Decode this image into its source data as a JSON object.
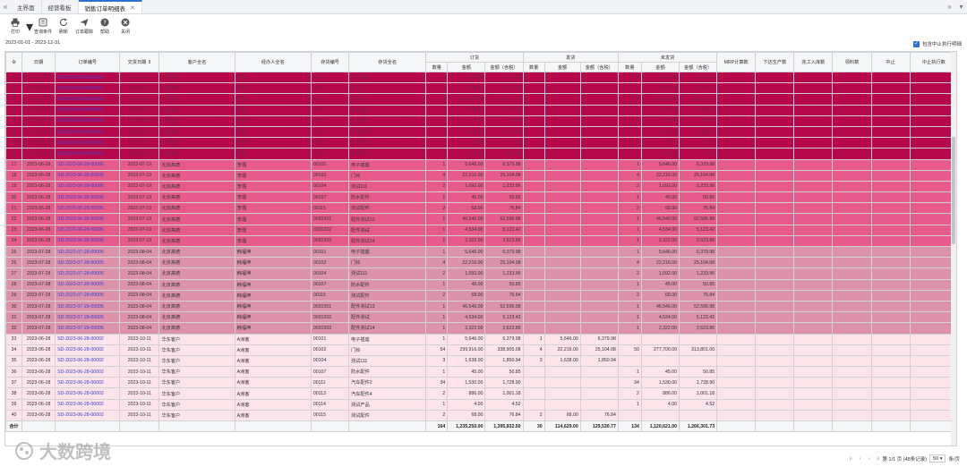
{
  "tabs": {
    "items": [
      {
        "label": "主界面",
        "active": false,
        "closable": false
      },
      {
        "label": "经营看板",
        "active": false,
        "closable": false
      },
      {
        "label": "销售订单明细表",
        "active": true,
        "closable": true
      }
    ]
  },
  "toolbar": {
    "buttons": [
      {
        "name": "print",
        "label": "打印",
        "icon": "printer-icon"
      },
      {
        "name": "filter",
        "label": "查询条件",
        "icon": "filter-icon"
      },
      {
        "name": "refresh",
        "label": "刷新",
        "icon": "refresh-icon"
      },
      {
        "name": "trace",
        "label": "订单跟踪",
        "icon": "send-icon"
      },
      {
        "name": "help",
        "label": "帮助",
        "icon": "help-icon"
      },
      {
        "name": "close",
        "label": "关闭",
        "icon": "close-icon"
      }
    ]
  },
  "date_range": "2023-01-01 - 2023-12-31",
  "show_suspended_label": "包含中止执行明细",
  "colors": {
    "rowgroup1": "#b8084c",
    "rowgroup2": "#e75b8c",
    "rowgroup3": "#dd92ab",
    "rowgroup4": "#fde3ea",
    "accent": "#2f6fd6"
  },
  "table": {
    "header_top": {
      "settings_icon": "gear-icon",
      "date": "日期",
      "order_no": "订单编号",
      "delivery_date": "交货日期",
      "customer": "客户全名",
      "handler": "经办人全名",
      "stock_no": "存货编号",
      "stock_name": "存货全名",
      "group_order": "订货",
      "group_delivered": "发货",
      "group_undelivered": "未发货",
      "mrp": "MRP计算数",
      "prod_plan": "下达生产数",
      "storage": "完工入库数",
      "pick": "领料数",
      "stop": "中止",
      "stop_exec": "中止执行数"
    },
    "header_sub": {
      "qty": "数量",
      "amount": "金额",
      "amount_tax": "金额（含税）"
    },
    "rows": [
      {
        "no": "9",
        "date": "2023-06-28",
        "order": "SD-2023-06-28-00001",
        "due": "2023-06-30",
        "cust": "华东客户",
        "handler": "王明",
        "code": "00101",
        "name": "电子插座",
        "oq": "1",
        "oa": "2,236.00",
        "ot": "2,546.48",
        "dq": "",
        "da": "",
        "dt": "",
        "uq": "1",
        "ua": "2,236.00",
        "ut": "2,546.48",
        "g": 1
      },
      {
        "no": "10",
        "date": "2023-06-28",
        "order": "SD-2023-06-28-00001",
        "due": "2023-06-30",
        "cust": "华东客户",
        "handler": "王明",
        "code": "00102",
        "name": "门铃",
        "oq": "1",
        "oa": "5,200.00",
        "ot": "5,876.00",
        "dq": "",
        "da": "",
        "dt": "",
        "uq": "1",
        "ua": "5,200.00",
        "ut": "5,876.00",
        "g": 1
      },
      {
        "no": "11",
        "date": "2023-06-28",
        "order": "SD-2023-06-28-00001",
        "due": "2023-06-30",
        "cust": "华东客户",
        "handler": "王明",
        "code": "00104",
        "name": "测试111",
        "oq": "3",
        "oa": "646,440.00",
        "ot": "730,477.20",
        "dq": "",
        "da": "",
        "dt": "",
        "uq": "3",
        "ua": "646,440.00",
        "ut": "730,477.20",
        "g": 1
      },
      {
        "no": "12",
        "date": "2023-06-28",
        "order": "SD-2023-06-28-00001",
        "due": "2023-06-30",
        "cust": "华东客户",
        "handler": "王明",
        "code": "00107",
        "name": "防水配件",
        "oq": "1",
        "oa": "2,300.00",
        "ot": "2,599.00",
        "dq": "",
        "da": "",
        "dt": "",
        "uq": "1",
        "ua": "2,300.00",
        "ut": "2,599.00",
        "g": 1
      },
      {
        "no": "13",
        "date": "2023-06-28",
        "order": "SD-2023-06-28-00001",
        "due": "2023-06-30",
        "cust": "华东客户",
        "handler": "王明",
        "code": "00110",
        "name": "汽车配件",
        "oq": "1",
        "oa": "50.00",
        "ot": "56.50",
        "dq": "",
        "da": "",
        "dt": "",
        "uq": "1",
        "ua": "50.00",
        "ut": "56.50",
        "g": 1
      },
      {
        "no": "14",
        "date": "2023-06-28",
        "order": "SD-2023-06-28-00001",
        "due": "2023-06-30",
        "cust": "华东客户",
        "handler": "王明",
        "code": "00111",
        "name": "汽车配件2",
        "oq": "1",
        "oa": "1,280.00",
        "ot": "1,446.40",
        "dq": "",
        "da": "",
        "dt": "",
        "uq": "1",
        "ua": "1,280.00",
        "ut": "1,446.40",
        "g": 1
      },
      {
        "no": "15",
        "date": "2023-06-28",
        "order": "SD-2023-06-28-00001",
        "due": "2023-06-30",
        "cust": "华东客户",
        "handler": "王明",
        "code": "00114",
        "name": "测试产品",
        "oq": "1",
        "oa": "3.00",
        "ot": "3.39",
        "dq": "",
        "da": "",
        "dt": "",
        "uq": "1",
        "ua": "3.00",
        "ut": "3.39",
        "g": 1
      },
      {
        "no": "16",
        "date": "2023-06-28",
        "order": "SD-2023-06-28-00001",
        "due": "2023-06-30",
        "cust": "华东客户",
        "handler": "王明",
        "code": "00115",
        "name": "测试配件",
        "oq": "1",
        "oa": "150.00",
        "ot": "169.50",
        "dq": "",
        "da": "",
        "dt": "",
        "uq": "1",
        "ua": "150.00",
        "ut": "169.50",
        "g": 1
      },
      {
        "no": "17",
        "date": "2023-06-28",
        "order": "SD-2023-06-28-00006",
        "due": "2023-07-19",
        "cust": "北京高德",
        "handler": "李强",
        "code": "00101",
        "name": "电子插座",
        "oq": "1",
        "oa": "5,646.00",
        "ot": "6,379.98",
        "dq": "",
        "da": "",
        "dt": "",
        "uq": "1",
        "ua": "5,646.00",
        "ut": "6,379.98",
        "g": 2
      },
      {
        "no": "18",
        "date": "2023-06-28",
        "order": "SD-2023-06-28-00006",
        "due": "2023-07-19",
        "cust": "北京高德",
        "handler": "李强",
        "code": "00102",
        "name": "门铃",
        "oq": "4",
        "oa": "22,216.00",
        "ot": "25,104.08",
        "dq": "",
        "da": "",
        "dt": "",
        "uq": "4",
        "ua": "22,216.00",
        "ut": "25,104.08",
        "g": 2
      },
      {
        "no": "19",
        "date": "2023-06-28",
        "order": "SD-2023-06-28-00006",
        "due": "2023-07-19",
        "cust": "北京高德",
        "handler": "李强",
        "code": "00104",
        "name": "测试111",
        "oq": "2",
        "oa": "1,092.00",
        "ot": "1,233.96",
        "dq": "",
        "da": "",
        "dt": "",
        "uq": "2",
        "ua": "1,092.00",
        "ut": "1,233.96",
        "g": 2
      },
      {
        "no": "20",
        "date": "2023-06-28",
        "order": "SD-2023-06-28-00006",
        "due": "2023-07-19",
        "cust": "北京高德",
        "handler": "李强",
        "code": "00107",
        "name": "防水配件",
        "oq": "1",
        "oa": "45.00",
        "ot": "50.85",
        "dq": "",
        "da": "",
        "dt": "",
        "uq": "1",
        "ua": "45.00",
        "ut": "50.85",
        "g": 2
      },
      {
        "no": "21",
        "date": "2023-06-28",
        "order": "SD-2023-06-28-00006",
        "due": "2023-07-19",
        "cust": "北京高德",
        "handler": "李强",
        "code": "00115",
        "name": "测试配件",
        "oq": "2",
        "oa": "68.00",
        "ot": "76.84",
        "dq": "",
        "da": "",
        "dt": "",
        "uq": "2",
        "ua": "68.00",
        "ut": "76.84",
        "g": 2
      },
      {
        "no": "22",
        "date": "2023-06-28",
        "order": "SD-2023-06-28-00006",
        "due": "2023-07-19",
        "cust": "北京高德",
        "handler": "李强",
        "code": "0020201",
        "name": "配件测试13",
        "oq": "1",
        "oa": "46,546.00",
        "ot": "52,596.98",
        "dq": "",
        "da": "",
        "dt": "",
        "uq": "1",
        "ua": "46,546.00",
        "ut": "52,596.98",
        "g": 2
      },
      {
        "no": "23",
        "date": "2023-06-28",
        "order": "SD-2023-06-28-00006",
        "due": "2023-07-19",
        "cust": "北京高德",
        "handler": "李强",
        "code": "0020202",
        "name": "配件测试",
        "oq": "1",
        "oa": "4,534.00",
        "ot": "5,123.42",
        "dq": "",
        "da": "",
        "dt": "",
        "uq": "1",
        "ua": "4,534.00",
        "ut": "5,123.42",
        "g": 2
      },
      {
        "no": "24",
        "date": "2023-06-28",
        "order": "SD-2023-06-28-00006",
        "due": "2023-07-19",
        "cust": "北京高德",
        "handler": "李强",
        "code": "0020203",
        "name": "配件测试14",
        "oq": "1",
        "oa": "2,322.00",
        "ot": "2,623.86",
        "dq": "",
        "da": "",
        "dt": "",
        "uq": "1",
        "ua": "2,322.00",
        "ut": "2,623.86",
        "g": 2
      },
      {
        "no": "25",
        "date": "2023-07-28",
        "order": "SD-2023-07-28-00005",
        "due": "2023-08-04",
        "cust": "北京高德",
        "handler": "韩福坤",
        "code": "00101",
        "name": "电子插座",
        "oq": "1",
        "oa": "5,646.00",
        "ot": "6,379.98",
        "dq": "",
        "da": "",
        "dt": "",
        "uq": "1",
        "ua": "5,646.00",
        "ut": "6,379.98",
        "g": 3
      },
      {
        "no": "26",
        "date": "2023-07-28",
        "order": "SD-2023-07-28-00005",
        "due": "2023-08-04",
        "cust": "北京高德",
        "handler": "韩福坤",
        "code": "00102",
        "name": "门铃",
        "oq": "4",
        "oa": "22,216.00",
        "ot": "25,104.08",
        "dq": "",
        "da": "",
        "dt": "",
        "uq": "4",
        "ua": "22,216.00",
        "ut": "25,104.08",
        "g": 3
      },
      {
        "no": "27",
        "date": "2023-07-28",
        "order": "SD-2023-07-28-00005",
        "due": "2023-08-04",
        "cust": "北京高德",
        "handler": "韩福坤",
        "code": "00104",
        "name": "测试111",
        "oq": "2",
        "oa": "1,092.00",
        "ot": "1,233.96",
        "dq": "",
        "da": "",
        "dt": "",
        "uq": "2",
        "ua": "1,092.00",
        "ut": "1,233.96",
        "g": 3
      },
      {
        "no": "28",
        "date": "2023-07-28",
        "order": "SD-2023-07-28-00005",
        "due": "2023-08-04",
        "cust": "北京高德",
        "handler": "韩福坤",
        "code": "00107",
        "name": "防水配件",
        "oq": "1",
        "oa": "45.00",
        "ot": "50.85",
        "dq": "",
        "da": "",
        "dt": "",
        "uq": "1",
        "ua": "45.00",
        "ut": "50.85",
        "g": 3
      },
      {
        "no": "29",
        "date": "2023-07-28",
        "order": "SD-2023-07-28-00005",
        "due": "2023-08-04",
        "cust": "北京高德",
        "handler": "韩福坤",
        "code": "00115",
        "name": "测试配件",
        "oq": "2",
        "oa": "68.00",
        "ot": "76.84",
        "dq": "",
        "da": "",
        "dt": "",
        "uq": "2",
        "ua": "68.00",
        "ut": "76.84",
        "g": 3
      },
      {
        "no": "30",
        "date": "2023-07-28",
        "order": "SD-2023-07-28-00005",
        "due": "2023-08-04",
        "cust": "北京高德",
        "handler": "韩福坤",
        "code": "0020201",
        "name": "配件测试13",
        "oq": "1",
        "oa": "46,546.00",
        "ot": "52,596.98",
        "dq": "",
        "da": "",
        "dt": "",
        "uq": "1",
        "ua": "46,546.00",
        "ut": "52,596.98",
        "g": 3
      },
      {
        "no": "31",
        "date": "2023-07-28",
        "order": "SD-2023-07-28-00005",
        "due": "2023-08-04",
        "cust": "北京高德",
        "handler": "韩福坤",
        "code": "0020202",
        "name": "配件测试",
        "oq": "1",
        "oa": "4,534.00",
        "ot": "5,123.42",
        "dq": "",
        "da": "",
        "dt": "",
        "uq": "1",
        "ua": "4,534.00",
        "ut": "5,123.42",
        "g": 3
      },
      {
        "no": "32",
        "date": "2023-07-28",
        "order": "SD-2023-07-28-00005",
        "due": "2023-08-04",
        "cust": "北京高德",
        "handler": "韩福坤",
        "code": "0020203",
        "name": "配件测试14",
        "oq": "1",
        "oa": "2,322.00",
        "ot": "2,623.86",
        "dq": "",
        "da": "",
        "dt": "",
        "uq": "1",
        "ua": "2,322.00",
        "ut": "2,623.86",
        "g": 3
      },
      {
        "no": "33",
        "date": "2023-06-28",
        "order": "SD-2023-06-28-00002",
        "due": "2023-10-11",
        "cust": "华东客户",
        "handler": "A洲客",
        "code": "00101",
        "name": "电子插座",
        "oq": "1",
        "oa": "5,646.00",
        "ot": "6,379.98",
        "dq": "1",
        "da": "5,646.00",
        "dt": "6,379.98",
        "uq": "",
        "ua": "",
        "ut": "",
        "g": 4
      },
      {
        "no": "34",
        "date": "2023-06-28",
        "order": "SD-2023-06-28-00002",
        "due": "2023-10-11",
        "cust": "华东客户",
        "handler": "A洲客",
        "code": "00102",
        "name": "门铃",
        "oq": "54",
        "oa": "299,916.00",
        "ot": "338,905.08",
        "dq": "4",
        "da": "22,216.00",
        "dt": "25,104.08",
        "uq": "50",
        "ua": "277,700.00",
        "ut": "313,801.00",
        "g": 4
      },
      {
        "no": "35",
        "date": "2023-06-28",
        "order": "SD-2023-06-28-00002",
        "due": "2023-10-11",
        "cust": "华东客户",
        "handler": "A洲客",
        "code": "00104",
        "name": "测试111",
        "oq": "3",
        "oa": "1,638.00",
        "ot": "1,850.94",
        "dq": "3",
        "da": "1,638.00",
        "dt": "1,850.94",
        "uq": "",
        "ua": "",
        "ut": "",
        "g": 4
      },
      {
        "no": "36",
        "date": "2023-06-28",
        "order": "SD-2023-06-28-00002",
        "due": "2023-10-11",
        "cust": "华东客户",
        "handler": "A洲客",
        "code": "00107",
        "name": "防水配件",
        "oq": "1",
        "oa": "45.00",
        "ot": "50.85",
        "dq": "",
        "da": "",
        "dt": "",
        "uq": "1",
        "ua": "45.00",
        "ut": "50.85",
        "g": 4
      },
      {
        "no": "37",
        "date": "2023-06-28",
        "order": "SD-2023-06-28-00002",
        "due": "2023-10-11",
        "cust": "华东客户",
        "handler": "A洲客",
        "code": "00111",
        "name": "汽车配件2",
        "oq": "34",
        "oa": "1,530.00",
        "ot": "1,728.90",
        "dq": "",
        "da": "",
        "dt": "",
        "uq": "34",
        "ua": "1,530.00",
        "ut": "1,728.90",
        "g": 4
      },
      {
        "no": "38",
        "date": "2023-06-28",
        "order": "SD-2023-06-28-00002",
        "due": "2023-10-11",
        "cust": "华东客户",
        "handler": "A洲客",
        "code": "00113",
        "name": "汽车配件4",
        "oq": "2",
        "oa": "886.00",
        "ot": "1,001.18",
        "dq": "",
        "da": "",
        "dt": "",
        "uq": "2",
        "ua": "886.00",
        "ut": "1,001.18",
        "g": 4
      },
      {
        "no": "39",
        "date": "2023-06-28",
        "order": "SD-2023-06-28-00002",
        "due": "2023-10-11",
        "cust": "华东客户",
        "handler": "A洲客",
        "code": "00114",
        "name": "测试产品",
        "oq": "1",
        "oa": "4.00",
        "ot": "4.52",
        "dq": "",
        "da": "",
        "dt": "",
        "uq": "1",
        "ua": "4.00",
        "ut": "4.52",
        "g": 4
      },
      {
        "no": "40",
        "date": "2023-06-28",
        "order": "SD-2023-06-28-00002",
        "due": "2023-10-11",
        "cust": "华东客户",
        "handler": "A洲客",
        "code": "00115",
        "name": "测试配件",
        "oq": "2",
        "oa": "68.00",
        "ot": "76.84",
        "dq": "2",
        "da": "68.00",
        "dt": "76.84",
        "uq": "",
        "ua": "",
        "ut": "",
        "g": 4
      }
    ],
    "total": {
      "label": "合计",
      "oq": "164",
      "oa": "1,235,250.00",
      "ot": "1,395,832.50",
      "dq": "30",
      "da": "114,629.00",
      "dt": "129,530.77",
      "uq": "134",
      "ua": "1,120,621.00",
      "ut": "1,266,301.73"
    }
  },
  "pager": {
    "info": "第 1/1 页 (48条记录)",
    "page_size": "50",
    "per_page_label": "条/页"
  },
  "watermark": {
    "text": "大数跨境"
  }
}
